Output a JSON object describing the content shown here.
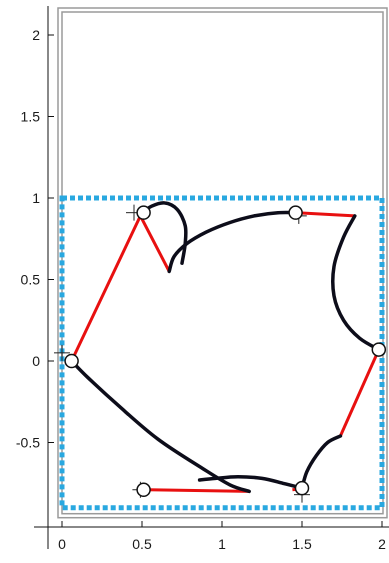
{
  "chart_data": {
    "type": "line",
    "title": "",
    "xlabel": "",
    "ylabel": "",
    "xlim": [
      0,
      2
    ],
    "ylim": [
      -0.9,
      2.15
    ],
    "x_ticks": [
      0,
      0.5,
      1,
      1.5,
      2
    ],
    "x_tick_labels": [
      "0",
      "0.5",
      "1",
      "1.5",
      "2"
    ],
    "y_ticks": [
      -0.5,
      0,
      0.5,
      1,
      1.5,
      2
    ],
    "y_tick_labels": [
      "-0.5",
      "0",
      "0.5",
      "1",
      "1.5",
      "2"
    ],
    "grid": false,
    "legend": "none",
    "colors": {
      "outer_frame": "#9a9a9a",
      "dashed_box": "#29a8e0",
      "red_links": "#e81010",
      "black_curves": "#0d0d1a",
      "nodes_fill": "#ffffff",
      "nodes_stroke": "#111111"
    },
    "outer_frame": {
      "x": [
        0,
        2
      ],
      "y": [
        -0.9,
        2.15
      ]
    },
    "dashed_box": {
      "x": [
        0,
        2
      ],
      "y": [
        -0.9,
        1.0
      ]
    },
    "nodes": [
      {
        "x": 0.06,
        "y": 0.0
      },
      {
        "x": 0.51,
        "y": 0.91
      },
      {
        "x": 1.46,
        "y": 0.91
      },
      {
        "x": 1.98,
        "y": 0.07
      },
      {
        "x": 1.5,
        "y": -0.78
      },
      {
        "x": 0.51,
        "y": -0.79
      }
    ],
    "red_links": [
      {
        "x": [
          0.06,
          0.49,
          0.67
        ],
        "y": [
          0.0,
          0.89,
          0.55
        ]
      },
      {
        "x": [
          1.47,
          1.83
        ],
        "y": [
          0.91,
          0.89
        ]
      },
      {
        "x": [
          1.98,
          1.74
        ],
        "y": [
          0.07,
          -0.46
        ]
      },
      {
        "x": [
          1.44,
          1.53
        ],
        "y": [
          -0.79,
          -0.78
        ]
      },
      {
        "x": [
          0.54,
          1.17
        ],
        "y": [
          -0.79,
          -0.8
        ]
      }
    ],
    "black_curves": [
      {
        "x": [
          0.06,
          0.16,
          0.36,
          0.6,
          0.88,
          1.05,
          1.17
        ],
        "y": [
          0.0,
          -0.1,
          -0.28,
          -0.48,
          -0.66,
          -0.76,
          -0.8
        ]
      },
      {
        "x": [
          0.67,
          0.7,
          0.78,
          0.9,
          1.05,
          1.2,
          1.35,
          1.48
        ],
        "y": [
          0.55,
          0.64,
          0.72,
          0.79,
          0.85,
          0.89,
          0.91,
          0.91
        ]
      },
      {
        "x": [
          0.5,
          0.56,
          0.64,
          0.72,
          0.77,
          0.77,
          0.75
        ],
        "y": [
          0.91,
          0.95,
          0.97,
          0.93,
          0.83,
          0.72,
          0.6
        ]
      },
      {
        "x": [
          1.83,
          1.76,
          1.7,
          1.7,
          1.76,
          1.86,
          1.98
        ],
        "y": [
          0.89,
          0.76,
          0.58,
          0.4,
          0.25,
          0.14,
          0.07
        ]
      },
      {
        "x": [
          0.86,
          0.96,
          1.1,
          1.25,
          1.38,
          1.5
        ],
        "y": [
          -0.73,
          -0.72,
          -0.71,
          -0.72,
          -0.75,
          -0.78
        ]
      },
      {
        "x": [
          1.5,
          1.53,
          1.59,
          1.66,
          1.74
        ],
        "y": [
          -0.78,
          -0.68,
          -0.58,
          -0.5,
          -0.46
        ]
      }
    ],
    "crosshairs": [
      {
        "x": 0.0,
        "y": 0.05
      },
      {
        "x": 0.45,
        "y": 0.91
      },
      {
        "x": 1.48,
        "y": 0.89
      },
      {
        "x": 0.49,
        "y": -0.79
      },
      {
        "x": 1.5,
        "y": -0.82
      }
    ]
  }
}
